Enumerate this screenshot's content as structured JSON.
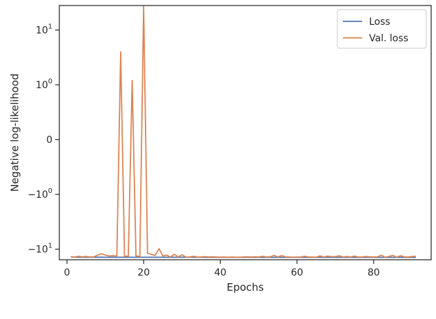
{
  "chart_data": {
    "type": "line",
    "xlabel": "Epochs",
    "ylabel": "Negative log-likelihood",
    "y_scale": "symlog",
    "xlim": [
      -2,
      95
    ],
    "ylim": [
      -15.6,
      28
    ],
    "x_ticks": [
      0,
      20,
      40,
      60,
      80
    ],
    "x_tick_labels": [
      "0",
      "20",
      "40",
      "60",
      "80"
    ],
    "y_ticks": [
      -10,
      -1,
      0,
      1,
      10
    ],
    "y_tick_labels": [
      {
        "base": "−10",
        "exp": "1"
      },
      {
        "base": "−10",
        "exp": "0"
      },
      {
        "base": "0",
        "exp": ""
      },
      {
        "base": "10",
        "exp": "0"
      },
      {
        "base": "10",
        "exp": "1"
      }
    ],
    "legend": {
      "placement": "top-right"
    },
    "series": [
      {
        "name": "Loss",
        "color": "#4c72b0",
        "x": [
          1,
          2,
          3,
          4,
          5,
          6,
          7,
          8,
          9,
          10,
          11,
          12,
          13,
          14,
          15,
          16,
          17,
          18,
          19,
          20,
          21,
          22,
          23,
          24,
          25,
          26,
          27,
          28,
          29,
          30,
          31,
          32,
          33,
          34,
          35,
          36,
          37,
          38,
          39,
          40,
          41,
          42,
          43,
          44,
          45,
          46,
          47,
          48,
          49,
          50,
          51,
          52,
          53,
          54,
          55,
          56,
          57,
          58,
          59,
          60,
          61,
          62,
          63,
          64,
          65,
          66,
          67,
          68,
          69,
          70,
          71,
          72,
          73,
          74,
          75,
          76,
          77,
          78,
          79,
          80,
          81,
          82,
          83,
          84,
          85,
          86,
          87,
          88,
          89,
          90,
          91
        ],
        "y": [
          -13.9,
          -13.95,
          -13.98,
          -14.0,
          -14.0,
          -14.02,
          -14.02,
          -14.03,
          -14.03,
          -14.04,
          -14.04,
          -14.05,
          -14.05,
          -14.05,
          -14.05,
          -14.06,
          -14.06,
          -14.06,
          -14.06,
          -14.06,
          -14.06,
          -14.07,
          -14.07,
          -14.07,
          -14.07,
          -14.07,
          -14.07,
          -14.07,
          -14.07,
          -14.07,
          -14.07,
          -14.07,
          -14.07,
          -14.07,
          -14.07,
          -14.08,
          -14.08,
          -14.08,
          -14.08,
          -14.08,
          -14.08,
          -14.08,
          -14.08,
          -14.08,
          -14.08,
          -14.08,
          -14.08,
          -14.08,
          -14.08,
          -14.08,
          -14.08,
          -14.08,
          -14.08,
          -14.08,
          -14.08,
          -14.08,
          -14.08,
          -14.08,
          -14.08,
          -14.08,
          -14.08,
          -14.08,
          -14.08,
          -14.08,
          -14.08,
          -14.08,
          -14.08,
          -14.08,
          -14.08,
          -14.08,
          -14.08,
          -14.08,
          -14.08,
          -14.08,
          -14.08,
          -14.08,
          -14.08,
          -14.08,
          -14.08,
          -14.08,
          -14.08,
          -14.08,
          -14.08,
          -14.08,
          -14.08,
          -14.08,
          -14.08,
          -14.08,
          -14.08,
          -14.08,
          -14.08
        ]
      },
      {
        "name": "Val. loss",
        "color": "#dd8452",
        "x": [
          1,
          2,
          3,
          4,
          5,
          6,
          7,
          8,
          9,
          10,
          11,
          12,
          13,
          14,
          15,
          16,
          17,
          18,
          19,
          20,
          21,
          22,
          23,
          24,
          25,
          26,
          27,
          28,
          29,
          30,
          31,
          32,
          33,
          34,
          35,
          36,
          37,
          38,
          39,
          40,
          41,
          42,
          43,
          44,
          45,
          46,
          47,
          48,
          49,
          50,
          51,
          52,
          53,
          54,
          55,
          56,
          57,
          58,
          59,
          60,
          61,
          62,
          63,
          64,
          65,
          66,
          67,
          68,
          69,
          70,
          71,
          72,
          73,
          74,
          75,
          76,
          77,
          78,
          79,
          80,
          81,
          82,
          83,
          84,
          85,
          86,
          87,
          88,
          89,
          90,
          91
        ],
        "y": [
          -13.7,
          -13.9,
          -13.5,
          -13.8,
          -13.6,
          -13.9,
          -13.8,
          -12.8,
          -12.2,
          -12.8,
          -13.3,
          -13.2,
          -13.3,
          4.0,
          -13.4,
          -13.4,
          1.2,
          -13.3,
          -13.6,
          27.0,
          -11.8,
          -12.5,
          -13.0,
          -9.8,
          -13.3,
          -12.8,
          -13.9,
          -12.4,
          -13.9,
          -12.7,
          -13.9,
          -13.9,
          -13.5,
          -13.9,
          -13.9,
          -13.7,
          -13.9,
          -13.8,
          -13.9,
          -14.0,
          -13.9,
          -14.0,
          -13.9,
          -14.0,
          -14.0,
          -13.9,
          -13.8,
          -13.9,
          -13.8,
          -13.9,
          -13.5,
          -13.9,
          -13.8,
          -13.0,
          -13.9,
          -13.1,
          -13.8,
          -13.9,
          -14.0,
          -13.9,
          -13.9,
          -13.5,
          -13.9,
          -13.9,
          -14.0,
          -13.3,
          -13.9,
          -13.4,
          -13.7,
          -13.7,
          -13.2,
          -13.9,
          -13.6,
          -13.9,
          -13.4,
          -13.9,
          -13.9,
          -13.6,
          -13.8,
          -13.9,
          -13.8,
          -12.9,
          -14.0,
          -13.6,
          -13.0,
          -14.0,
          -13.2,
          -13.8,
          -13.9,
          -13.6,
          -13.5
        ]
      }
    ]
  }
}
